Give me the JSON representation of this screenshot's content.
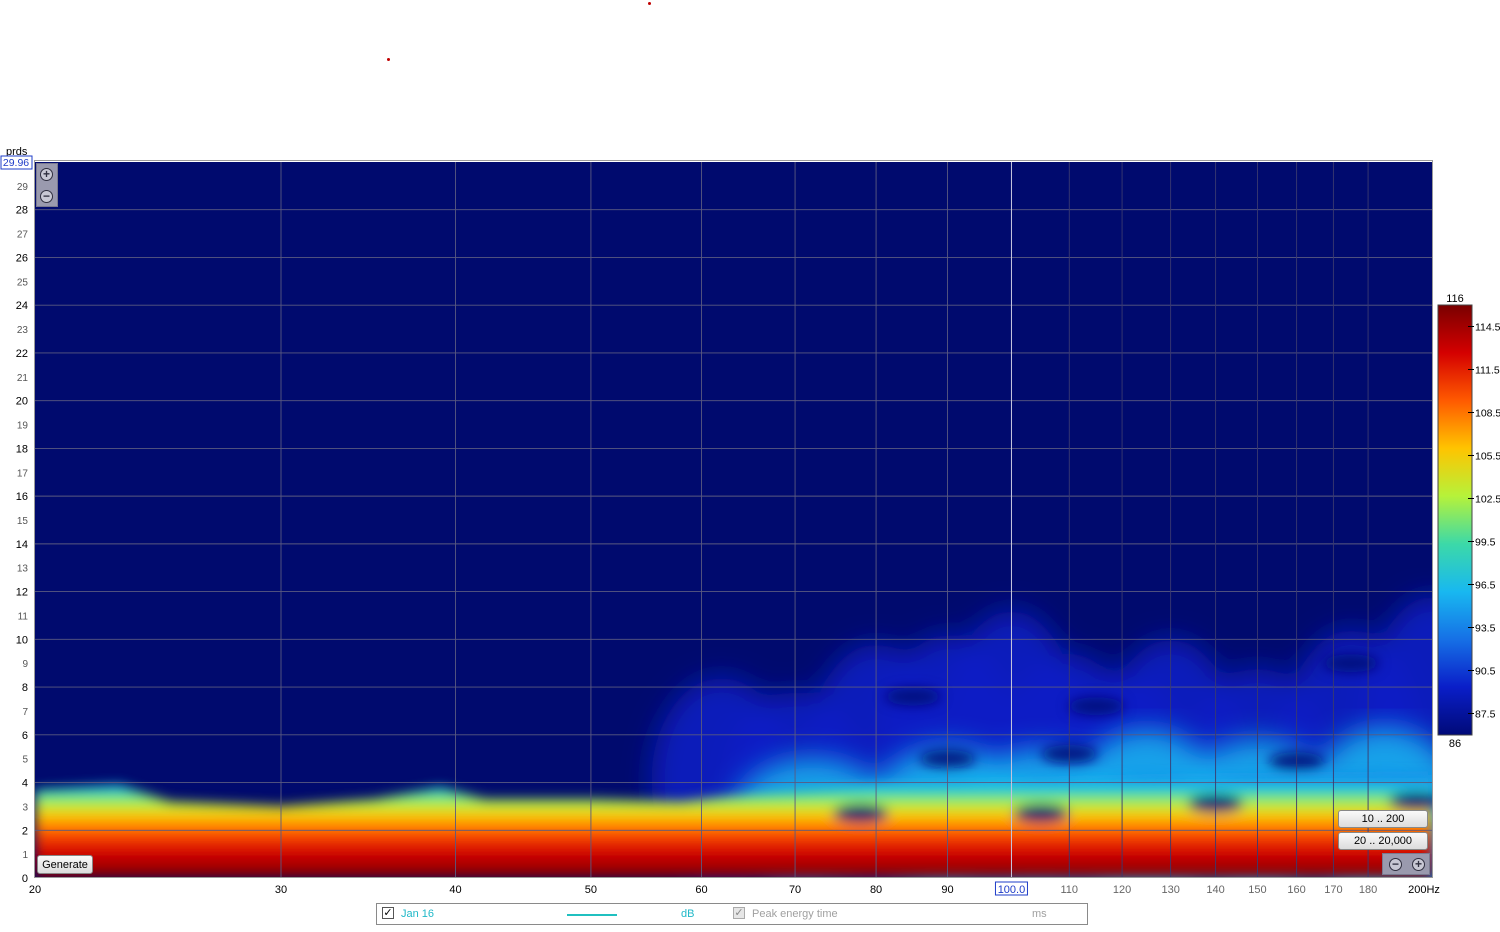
{
  "chart_data": {
    "type": "heatmap",
    "y_unit_label": "prds",
    "y_top_readout": "29.96",
    "x_unit_suffix": "Hz",
    "x_cursor_readout": "100.0",
    "x_axis": {
      "scale": "log",
      "range": [
        20,
        200
      ],
      "ticks": [
        "20",
        "30",
        "40",
        "50",
        "60",
        "70",
        "80",
        "90",
        "100.0",
        "110",
        "120",
        "130",
        "140",
        "150",
        "160",
        "170",
        "180",
        "200Hz"
      ],
      "tick_values": [
        20,
        30,
        40,
        50,
        60,
        70,
        80,
        90,
        100,
        110,
        120,
        130,
        140,
        150,
        160,
        170,
        180,
        200
      ]
    },
    "y_axis": {
      "range": [
        0,
        30
      ],
      "ticks": [
        "0",
        "1",
        "2",
        "3",
        "4",
        "5",
        "6",
        "7",
        "8",
        "9",
        "10",
        "11",
        "12",
        "13",
        "14",
        "15",
        "16",
        "17",
        "18",
        "19",
        "20",
        "21",
        "22",
        "23",
        "24",
        "25",
        "26",
        "27",
        "28",
        "29"
      ]
    },
    "colorbar": {
      "min_label": "86",
      "max_label": "116",
      "range": [
        86,
        116
      ],
      "labels": [
        "114.5",
        "111.5",
        "108.5",
        "105.5",
        "102.5",
        "99.5",
        "96.5",
        "93.5",
        "90.5",
        "87.5"
      ],
      "label_values": [
        114.5,
        111.5,
        108.5,
        105.5,
        102.5,
        99.5,
        96.5,
        93.5,
        90.5,
        87.5
      ]
    },
    "grid": true,
    "cursor_x_value": 100,
    "color_map": [
      "#7a0000",
      "#d40000",
      "#ff5a00",
      "#ffc400",
      "#b6f23a",
      "#3cd9a8",
      "#18b8f0",
      "#1670e6",
      "#0a1ec8",
      "#000a78"
    ]
  },
  "controls": {
    "generate_label": "Generate",
    "range_time_label": "10 .. 200",
    "range_freq_label": "20 .. 20,000"
  },
  "legend": {
    "series_name": "Jan 16",
    "series_color": "#20c0c0",
    "unit_db": "dB",
    "peak_label": "Peak energy time",
    "unit_ms": "ms"
  }
}
